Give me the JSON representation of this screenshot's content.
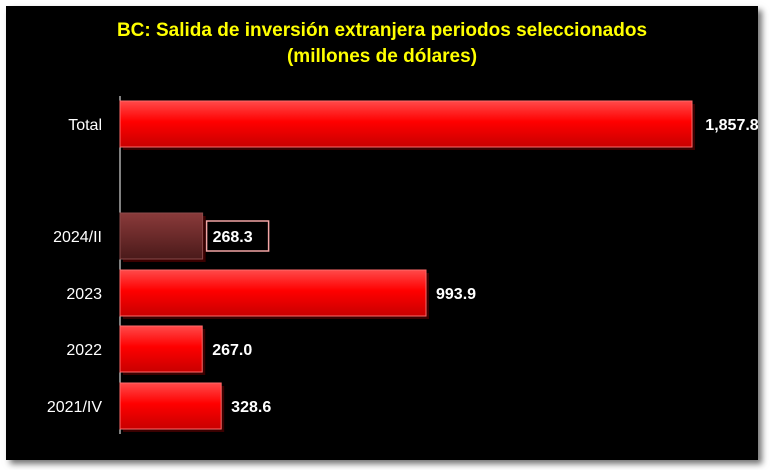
{
  "chart_data": {
    "type": "bar",
    "orientation": "horizontal",
    "title": "BC: Salida de inversión extranjera periodos seleccionados",
    "subtitle": "(millones de dólares)",
    "categories": [
      "Total",
      "2024/II",
      "2023",
      "2022",
      "2021/IV"
    ],
    "values": [
      1857.8,
      268.3,
      993.9,
      267.0,
      328.6
    ],
    "value_labels": [
      "1,857.8",
      "268.3",
      "993.9",
      "267.0",
      "328.6"
    ],
    "bar_colors": [
      "#ff0000",
      "#6b2a2a",
      "#ff0000",
      "#ff0000",
      "#ff0000"
    ],
    "highlighted_category": "2024/II",
    "highlight_label_border": "#f4a6a6",
    "xlim": [
      0,
      1857.8
    ],
    "grid": false,
    "legend": "none",
    "background": "#000000",
    "title_color": "#ffff00"
  }
}
